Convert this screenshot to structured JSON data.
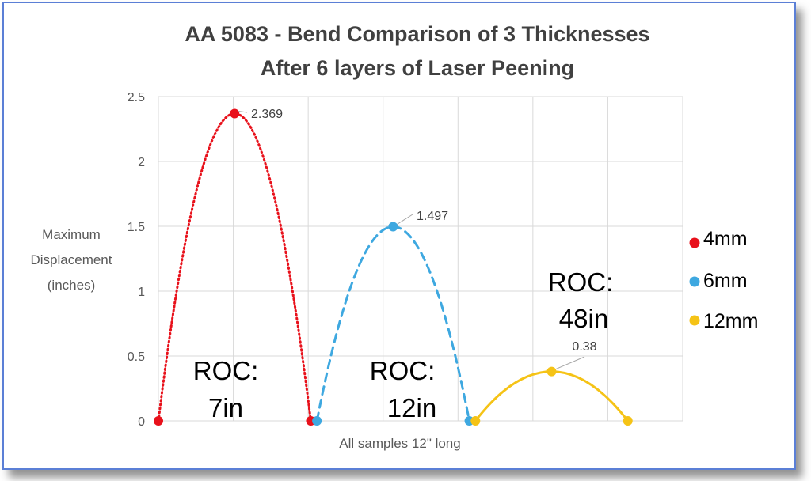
{
  "chart_data": {
    "type": "scatter",
    "title": "AA 5083 - Bend Comparison of 3 Thicknesses",
    "subtitle": "After 6 layers of Laser Peening",
    "xlabel": "All samples 12\" long",
    "ylabel_lines": [
      "Maximum",
      "Displacement",
      "(inches)"
    ],
    "ylim": [
      0,
      2.5
    ],
    "yticks": [
      "0",
      "0.5",
      "1",
      "1.5",
      "2",
      "2.5"
    ],
    "grid": true,
    "legend_position": "right",
    "series": [
      {
        "name": "4mm",
        "color": "#e8111b",
        "line_style": "dotted",
        "points": [
          [
            0,
            0
          ],
          [
            1,
            2.369
          ],
          [
            2,
            0
          ]
        ],
        "label": "2.369"
      },
      {
        "name": "6mm",
        "color": "#3ea8e0",
        "line_style": "dashed",
        "points": [
          [
            2.08,
            0
          ],
          [
            3.08,
            1.497
          ],
          [
            4.08,
            0
          ]
        ],
        "label": "1.497"
      },
      {
        "name": "12mm",
        "color": "#f5c316",
        "line_style": "solid",
        "points": [
          [
            4.16,
            0
          ],
          [
            5.16,
            0.38
          ],
          [
            6.16,
            0
          ]
        ],
        "label": "0.38"
      }
    ],
    "annotations": [
      {
        "lines": [
          "ROC:",
          "7in"
        ]
      },
      {
        "lines": [
          "ROC:",
          "12in"
        ]
      },
      {
        "lines": [
          "ROC:",
          "48in"
        ]
      }
    ]
  }
}
